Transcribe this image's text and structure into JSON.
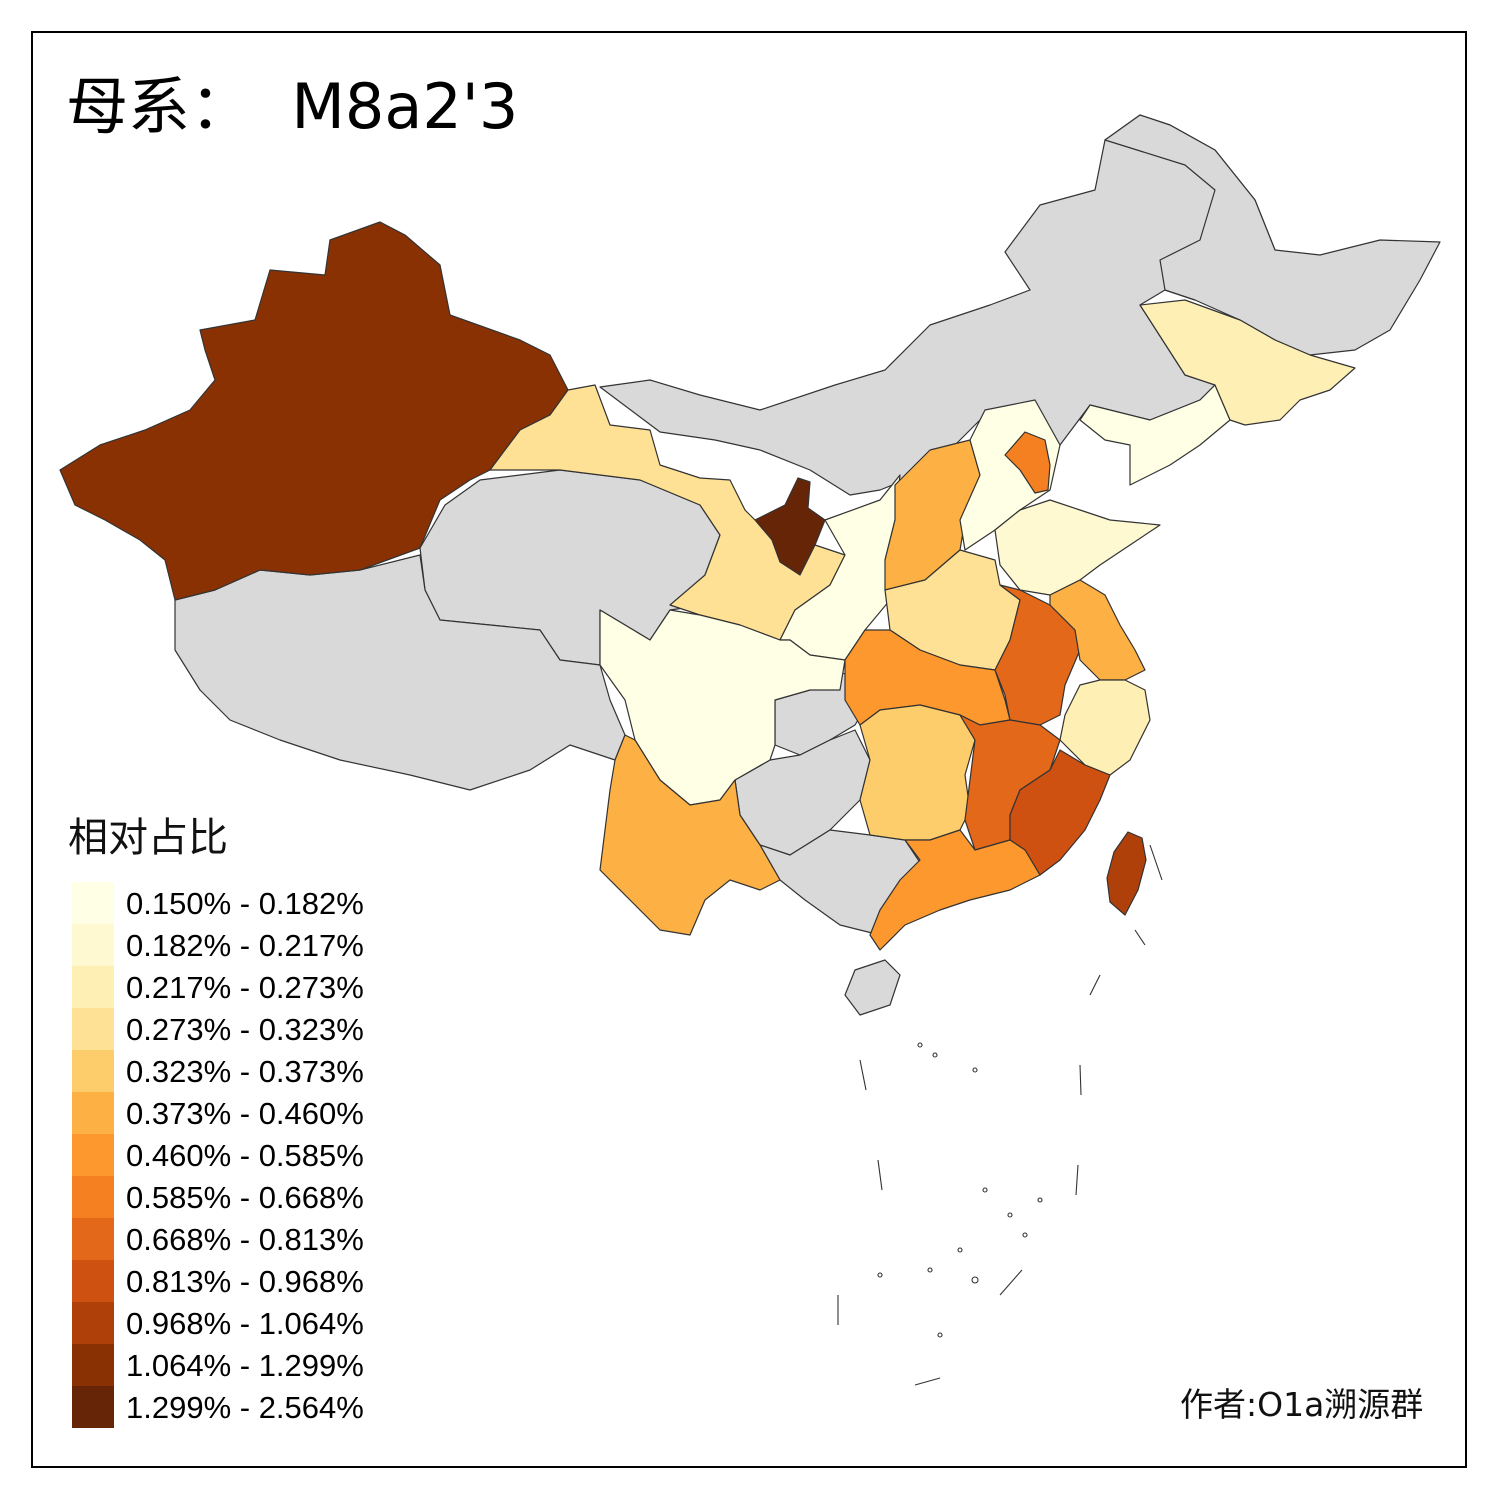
{
  "title": "母系：  M8a2'3",
  "legend": {
    "title": "相对占比",
    "classes": [
      {
        "label": "0.150% - 0.182%",
        "color": "#FFFFE5"
      },
      {
        "label": "0.182% - 0.217%",
        "color": "#FFF9D2"
      },
      {
        "label": "0.217% - 0.273%",
        "color": "#FEEFB5"
      },
      {
        "label": "0.273% - 0.323%",
        "color": "#FEE195"
      },
      {
        "label": "0.323% - 0.373%",
        "color": "#FECD6B"
      },
      {
        "label": "0.373% - 0.460%",
        "color": "#FDB145"
      },
      {
        "label": "0.460% - 0.585%",
        "color": "#FC982D"
      },
      {
        "label": "0.585% - 0.668%",
        "color": "#F48021"
      },
      {
        "label": "0.668% - 0.813%",
        "color": "#E4681A"
      },
      {
        "label": "0.813% - 0.968%",
        "color": "#CF5111"
      },
      {
        "label": "0.968% - 1.064%",
        "color": "#B0400A"
      },
      {
        "label": "1.064% - 1.299%",
        "color": "#8A3104"
      },
      {
        "label": "1.299% - 2.564%",
        "color": "#662506"
      }
    ]
  },
  "no_data_color": "#D9D9D9",
  "provinces": [
    {
      "name": "Xinjiang",
      "class": 11
    },
    {
      "name": "Ningxia",
      "class": 12
    },
    {
      "name": "Gansu",
      "class": 3
    },
    {
      "name": "Shaanxi",
      "class": 0
    },
    {
      "name": "Sichuan",
      "class": 0
    },
    {
      "name": "Yunnan",
      "class": 5
    },
    {
      "name": "Shanxi",
      "class": 5
    },
    {
      "name": "Beijing",
      "class": 7
    },
    {
      "name": "Hebei",
      "class": 0
    },
    {
      "name": "Liaoning",
      "class": 0
    },
    {
      "name": "Jilin",
      "class": 2
    },
    {
      "name": "Shandong",
      "class": 1
    },
    {
      "name": "Henan",
      "class": 3
    },
    {
      "name": "Hubei",
      "class": 6
    },
    {
      "name": "Hunan",
      "class": 4
    },
    {
      "name": "Anhui",
      "class": 8
    },
    {
      "name": "Jiangsu",
      "class": 5
    },
    {
      "name": "Zhejiang",
      "class": 2
    },
    {
      "name": "Jiangxi",
      "class": 8
    },
    {
      "name": "Fujian",
      "class": 9
    },
    {
      "name": "Guangdong",
      "class": 6
    },
    {
      "name": "Taiwan",
      "class": 10
    },
    {
      "name": "Inner Mongolia",
      "class": null
    },
    {
      "name": "Heilongjiang",
      "class": null
    },
    {
      "name": "Qinghai",
      "class": null
    },
    {
      "name": "Tibet",
      "class": null
    },
    {
      "name": "Chongqing",
      "class": null
    },
    {
      "name": "Guizhou",
      "class": null
    },
    {
      "name": "Guangxi",
      "class": null
    },
    {
      "name": "Hainan",
      "class": null
    }
  ],
  "author": "作者:O1a溯源群"
}
